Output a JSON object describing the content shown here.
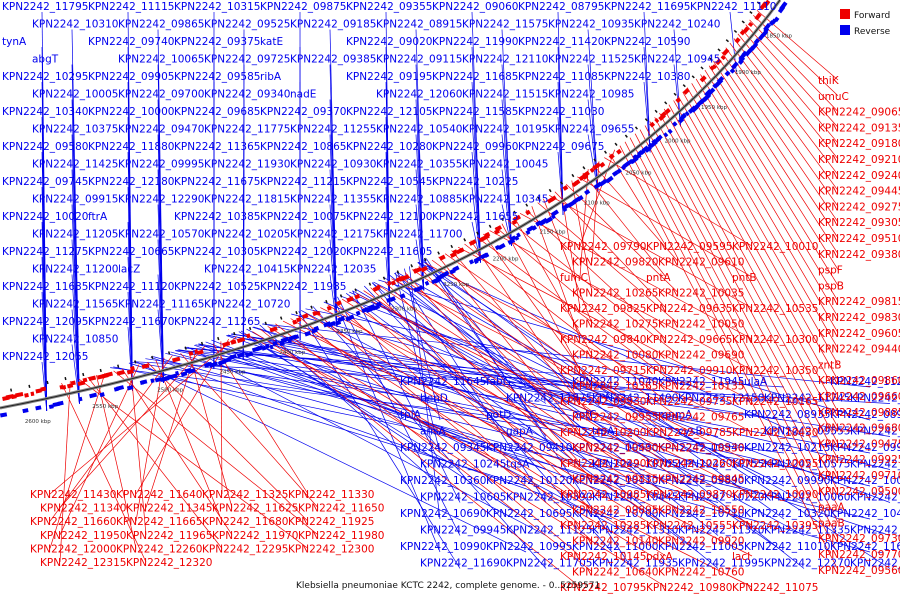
{
  "caption": "Klebsiella pneumoniae KCTC 2242, complete genome. - 0..5259571",
  "legend": [
    {
      "label": "Forward",
      "color": "#ee0000"
    },
    {
      "label": "Reverse",
      "color": "#0000ee"
    }
  ],
  "colors": {
    "forward": "#ee0000",
    "reverse": "#0000ee",
    "backbone": "#888888"
  },
  "ticks": [
    "1850 kbp",
    "1900 kbp",
    "1950 kbp",
    "2000 kbp",
    "2050 kbp",
    "2100 kbp",
    "2150 kbp",
    "2200 kbp",
    "2250 kbp",
    "2300 kbp",
    "2350 kbp",
    "2400 kbp",
    "2450 kbp",
    "2500 kbp",
    "2550 kbp",
    "2600 kbp"
  ],
  "labels_reverse": [
    "KPN2242_11795",
    "KPN2242_11115",
    "KPN2242_10315",
    "KPN2242_09875",
    "KPN2242_09355",
    "KPN2242_09060",
    "KPN2242_08795",
    "KPN2242_11695",
    "KPN2242_11110",
    "KPN2242_10310",
    "KPN2242_09865",
    "KPN2242_09525",
    "KPN2242_09185",
    "KPN2242_08915",
    "KPN2242_11575",
    "KPN2242_10935",
    "KPN2242_10240",
    "tynA",
    "KPN2242_09740",
    "KPN2242_09375",
    "katE",
    "KPN2242_09020",
    "KPN2242_11990",
    "KPN2242_11420",
    "KPN2242_10590",
    "abgT",
    "KPN2242_10065",
    "KPN2242_09725",
    "KPN2242_09385",
    "KPN2242_09115",
    "KPN2242_12110",
    "KPN2242_11525",
    "KPN2242_10945",
    "KPN2242_10295",
    "KPN2242_09905",
    "KPN2242_09585",
    "ribA",
    "KPN2242_09195",
    "KPN2242_11685",
    "KPN2242_11085",
    "KPN2242_10380",
    "KPN2242_10005",
    "KPN2242_09700",
    "KPN2242_09340",
    "nadE",
    "KPN2242_12060",
    "KPN2242_11515",
    "KPN2242_10985",
    "KPN2242_10340",
    "KPN2242_10000",
    "KPN2242_09685",
    "KPN2242_09370",
    "KPN2242_12105",
    "KPN2242_11585",
    "KPN2242_11030",
    "KPN2242_10375",
    "KPN2242_09470",
    "KPN2242_11775",
    "KPN2242_11255",
    "KPN2242_10540",
    "KPN2242_10195",
    "KPN2242_09655",
    "KPN2242_09580",
    "KPN2242_11880",
    "KPN2242_11365",
    "KPN2242_10865",
    "KPN2242_10280",
    "KPN2242_09960",
    "KPN2242_09675",
    "KPN2242_11425",
    "KPN2242_09995",
    "KPN2242_11930",
    "KPN2242_10930",
    "KPN2242_10355",
    "KPN2242_10045",
    "KPN2242_09745",
    "KPN2242_12180",
    "KPN2242_11675",
    "KPN2242_11215",
    "KPN2242_10545",
    "KPN2242_10225",
    "KPN2242_09915",
    "KPN2242_12290",
    "KPN2242_11815",
    "KPN2242_11355",
    "KPN2242_10885",
    "KPN2242_10345",
    "KPN2242_10020",
    "ftrA",
    "KPN2242_10385",
    "KPN2242_10075",
    "KPN2242_12100",
    "KPN2242_11655",
    "KPN2242_11205",
    "KPN2242_10570",
    "KPN2242_10205",
    "KPN2242_12175",
    "KPN2242_11700",
    "KPN2242_11275",
    "KPN2242_10665",
    "KPN2242_10305",
    "KPN2242_12020",
    "KPN2242_11605",
    "KPN2242_11200",
    "lacZ",
    "KPN2242_10415",
    "KPN2242_12035",
    "KPN2242_11635",
    "KPN2242_11120",
    "KPN2242_10525",
    "KPN2242_11985",
    "KPN2242_11565",
    "KPN2242_11165",
    "KPN2242_10720",
    "KPN2242_12095",
    "KPN2242_11670",
    "KPN2242_11265",
    "KPN2242_10850",
    "KPN2242_12055",
    "KPN2242_11645",
    "fabG",
    "KPN2242_11040",
    "KPN2242_11945",
    "ulaA",
    "KPN2242_11285",
    "benD",
    "KPN2242_11875",
    "KPN2242_11490",
    "KPN2242_12150",
    "KPN2242_11745",
    "KPN2242_12085",
    "tpiA",
    "potD",
    "potC",
    "mnmA",
    "KPN2242_08935",
    "KPN2242_08985",
    "ansA",
    "gapA",
    "trpA",
    "cysB",
    "KPN2242_09555",
    "KPN2242_09590",
    "KPN2242_09345",
    "KPN2242_09410",
    "KPN2242_09530",
    "KPN2242_09940",
    "KPN2242_10215",
    "KPN2242_09985",
    "KPN2242_10245",
    "tqsA",
    "KPN2242_10705",
    "KPN2242_10755",
    "KPN2242_10575",
    "KPN2242_10595",
    "KPN2242_10360",
    "KPN2242_10120",
    "KPN2242_10110",
    "KPN2242_09890",
    "KPN2242_09990",
    "KPN2242_10015",
    "KPN2242_10605",
    "KPN2242_10390",
    "KPN2242_10445",
    "KPN2242_10220",
    "KPN2242_10060",
    "KPN2242_10685",
    "KPN2242_10690",
    "KPN2242_10695",
    "KPN2242_10700",
    "KPN2242_10710",
    "KPN2242_10320",
    "KPN2242_10400",
    "KPN2242_09945",
    "KPN2242_11125",
    "KPN2242_11310",
    "KPN2242_11320",
    "KPN2242_11335",
    "KPN2242_11350",
    "KPN2242_10990",
    "KPN2242_10995",
    "KPN2242_11000",
    "KPN2242_11005",
    "KPN2242_11010",
    "KPN2242_11615",
    "KPN2242_11690",
    "KPN2242_11705",
    "KPN2242_11935",
    "KPN2242_11995",
    "KPN2242_12270",
    "KPN2242_12285",
    "KPN2242_12305"
  ],
  "labels_forward": [
    "thiK",
    "umuC",
    "KPN2242_09065",
    "KPN2242_09135",
    "KPN2242_09180",
    "KPN2242_09210",
    "KPN2242_09240",
    "KPN2242_09445",
    "KPN2242_09275",
    "KPN2242_09305",
    "KPN2242_09510",
    "KPN2242_09380",
    "pspF",
    "pspB",
    "KPN2242_09815",
    "KPN2242_09830",
    "KPN2242_09605",
    "KPN2242_09440",
    "zntB",
    "KPN2242_09860",
    "KPN2242_09660",
    "KPN2242_09885",
    "KPN2242_09680",
    "KPN2242_09475",
    "KPN2242_09925",
    "KPN2242_09710",
    "KPN2242_09500",
    "paaA",
    "paaB",
    "KPN2242_09730",
    "KPN2242_09770",
    "KPN2242_09560",
    "KPN2242_09790",
    "KPN2242_09595",
    "KPN2242_10010",
    "KPN2242_09820",
    "KPN2242_09610",
    "fumC",
    "pntA",
    "pntB",
    "KPN2242_10265",
    "KPN2242_10035",
    "KPN2242_09825",
    "KPN2242_09635",
    "KPN2242_10535",
    "KPN2242_10275",
    "KPN2242_10050",
    "KPN2242_09840",
    "KPN2242_09665",
    "KPN2242_10300",
    "KPN2242_10080",
    "KPN2242_09690",
    "KPN2242_09715",
    "KPN2242_09910",
    "KPN2242_10350",
    "KPN2242_10365",
    "KPN2242_10135",
    "KPN2242_09930",
    "KPN2242_09735",
    "KPN2242_10165",
    "KPN2242_09955",
    "KPN2242_09765",
    "KPN2242_10200",
    "KPN2242_09785",
    "KPN2242_10430",
    "KPN2242_10490",
    "KPN2242_10530",
    "KPN2242_10290",
    "KPN2242_10260",
    "KPN2242_10055",
    "KPN2242_09835",
    "KPN2242_09845",
    "KPN2242_10085",
    "KPN2242_09870",
    "KPN2242_10090",
    "KPN2242_09895",
    "KPN2242_10550",
    "KPN2242_10285",
    "KPN2242_10555",
    "KPN2242_10395",
    "KPN2242_10140",
    "KPN2242_09920",
    "KPN2242_10145",
    "pdxA",
    "lacI",
    "KPN2242_10640",
    "KPN2242_10760",
    "KPN2242_10795",
    "KPN2242_10980",
    "KPN2242_11075",
    "KPN2242_11430",
    "KPN2242_11640",
    "KPN2242_11325",
    "KPN2242_11330",
    "KPN2242_11340",
    "KPN2242_11345",
    "KPN2242_11625",
    "KPN2242_11650",
    "KPN2242_11660",
    "KPN2242_11665",
    "KPN2242_11680",
    "KPN2242_11925",
    "KPN2242_11950",
    "KPN2242_11965",
    "KPN2242_11970",
    "KPN2242_11980",
    "KPN2242_12000",
    "KPN2242_12260",
    "KPN2242_12295",
    "KPN2242_12300",
    "KPN2242_12315",
    "KPN2242_12320"
  ]
}
